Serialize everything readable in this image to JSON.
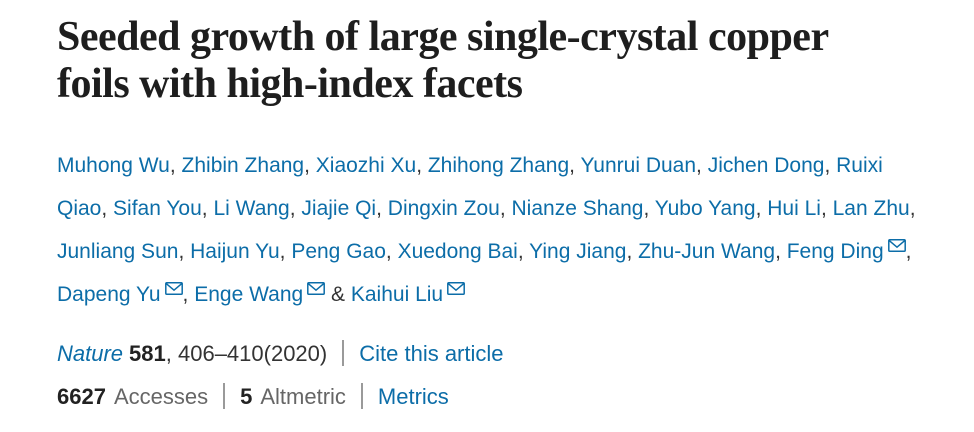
{
  "colors": {
    "link_blue": "#0c6da8",
    "title_color": "#1e1e1e",
    "text_dark": "#222222",
    "muted_gray": "#666666",
    "divider_gray": "#9a9a9a",
    "background": "#ffffff"
  },
  "title": {
    "text": "Seeded growth of large single-crystal copper foils with high-index facets"
  },
  "authors": {
    "separator": ", ",
    "last_separator": " & ",
    "email_icon": "envelope-icon",
    "names": [
      {
        "name": "Muhong Wu",
        "email": false
      },
      {
        "name": "Zhibin Zhang",
        "email": false
      },
      {
        "name": "Xiaozhi Xu",
        "email": false
      },
      {
        "name": "Zhihong Zhang",
        "email": false
      },
      {
        "name": "Yunrui Duan",
        "email": false
      },
      {
        "name": "Jichen Dong",
        "email": false
      },
      {
        "name": "Ruixi Qiao",
        "email": false
      },
      {
        "name": "Sifan You",
        "email": false
      },
      {
        "name": "Li Wang",
        "email": false
      },
      {
        "name": "Jiajie Qi",
        "email": false
      },
      {
        "name": "Dingxin Zou",
        "email": false
      },
      {
        "name": "Nianze Shang",
        "email": false
      },
      {
        "name": "Yubo Yang",
        "email": false
      },
      {
        "name": "Hui Li",
        "email": false
      },
      {
        "name": "Lan Zhu",
        "email": false
      },
      {
        "name": "Junliang Sun",
        "email": false
      },
      {
        "name": "Haijun Yu",
        "email": false
      },
      {
        "name": "Peng Gao",
        "email": false
      },
      {
        "name": "Xuedong Bai",
        "email": false
      },
      {
        "name": "Ying Jiang",
        "email": false
      },
      {
        "name": "Zhu-Jun Wang",
        "email": false
      },
      {
        "name": "Feng Ding",
        "email": true
      },
      {
        "name": "Dapeng Yu",
        "email": true
      },
      {
        "name": "Enge Wang",
        "email": true
      },
      {
        "name": "Kaihui Liu",
        "email": true
      }
    ]
  },
  "citation": {
    "journal": "Nature",
    "volume": "581",
    "pages_year": ", 406–410(2020)",
    "cite_link": "Cite this article"
  },
  "metrics": {
    "accesses_count": "6627",
    "accesses_label": "Accesses",
    "altmetric_count": "5",
    "altmetric_label": "Altmetric",
    "metrics_link": "Metrics"
  }
}
